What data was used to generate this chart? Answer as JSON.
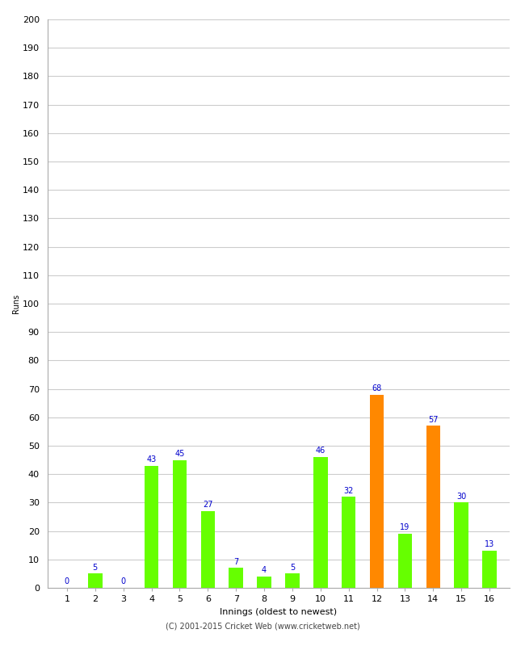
{
  "xlabel": "Innings (oldest to newest)",
  "ylabel": "Runs",
  "categories": [
    1,
    2,
    3,
    4,
    5,
    6,
    7,
    8,
    9,
    10,
    11,
    12,
    13,
    14,
    15,
    16
  ],
  "values": [
    0,
    5,
    0,
    43,
    45,
    27,
    7,
    4,
    5,
    46,
    32,
    68,
    19,
    57,
    30,
    13
  ],
  "bar_colors": [
    "#66ff00",
    "#66ff00",
    "#66ff00",
    "#66ff00",
    "#66ff00",
    "#66ff00",
    "#66ff00",
    "#66ff00",
    "#66ff00",
    "#66ff00",
    "#66ff00",
    "#ff8800",
    "#66ff00",
    "#ff8800",
    "#66ff00",
    "#66ff00"
  ],
  "ylim": [
    0,
    200
  ],
  "yticks": [
    0,
    10,
    20,
    30,
    40,
    50,
    60,
    70,
    80,
    90,
    100,
    110,
    120,
    130,
    140,
    150,
    160,
    170,
    180,
    190,
    200
  ],
  "label_color": "#0000cc",
  "label_fontsize": 7,
  "axis_fontsize": 8,
  "ylabel_fontsize": 7,
  "footer": "(C) 2001-2015 Cricket Web (www.cricketweb.net)",
  "footer_fontsize": 7,
  "background_color": "#ffffff",
  "grid_color": "#cccccc",
  "bar_width": 0.5
}
